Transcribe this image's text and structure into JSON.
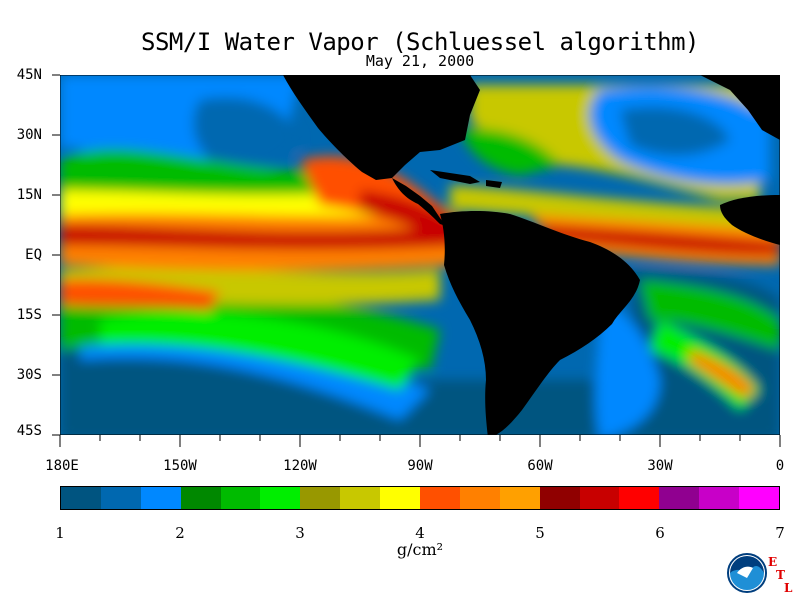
{
  "title": "SSM/I Water Vapor (Schluessel algorithm)",
  "subtitle": "May 21, 2000",
  "latitude_labels": [
    "45N",
    "30N",
    "15N",
    "EQ",
    "15S",
    "30S",
    "45S"
  ],
  "longitude_labels": [
    "180E",
    "150W",
    "120W",
    "90W",
    "60W",
    "30W",
    "0"
  ],
  "colorbar": {
    "unit": "g/cm²",
    "tick_labels": [
      "1",
      "2",
      "3",
      "4",
      "5",
      "6",
      "7"
    ],
    "colors": [
      "#005480",
      "#0068b0",
      "#0088ff",
      "#008800",
      "#00bb00",
      "#00ee00",
      "#989800",
      "#c8c800",
      "#ffff00",
      "#ff5000",
      "#ff8000",
      "#ffa000",
      "#900000",
      "#c80000",
      "#ff0000",
      "#900090",
      "#c800c8",
      "#ff00ff"
    ]
  },
  "logo": {
    "agency": "NOAA",
    "lab_letters": [
      "E",
      "T",
      "L"
    ]
  }
}
